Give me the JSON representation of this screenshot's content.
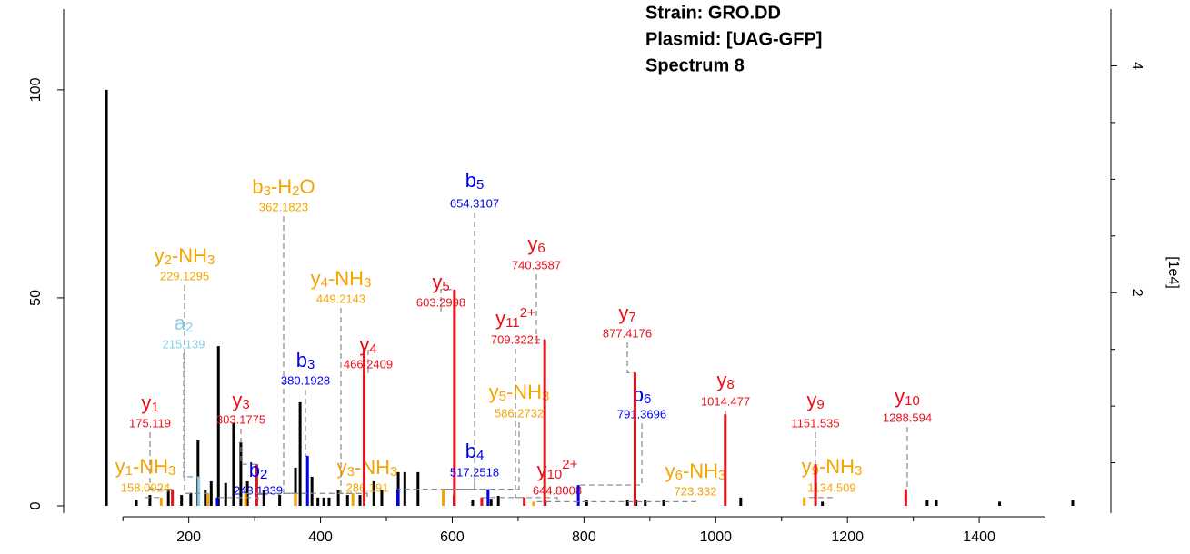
{
  "chart_data": {
    "type": "spectrum",
    "header": [
      "Strain: GRO.DD",
      "Plasmid: [UAG-GFP]",
      "Spectrum 8"
    ],
    "y2_label": "[1e4]",
    "xlim": [
      10,
      1600
    ],
    "xticks": [
      200,
      400,
      600,
      800,
      1000,
      1200,
      1400
    ],
    "xminor_ticks": [
      100,
      300,
      500,
      700,
      900,
      1100,
      1300,
      1500
    ],
    "ylim": [
      -1.75,
      119.4
    ],
    "yticks": [
      0,
      50,
      100
    ],
    "y2lim": [
      0.056,
      4.5
    ],
    "y2ticks": [
      2,
      4
    ],
    "y2minor_ticks": [
      0.5,
      1,
      1.5,
      2.5,
      3,
      3.5
    ],
    "peak_color": "#000000",
    "peaks": {
      "mz": [
        75,
        120.4,
        141,
        169,
        189,
        203,
        214,
        225,
        234,
        245,
        256,
        268,
        279,
        289,
        314,
        338,
        362,
        369,
        387,
        396,
        405,
        413,
        427,
        441,
        460,
        481,
        493,
        518,
        528,
        548,
        603,
        631,
        659,
        670,
        741,
        804,
        866,
        879,
        893,
        921,
        1038,
        1162,
        1321,
        1335,
        1431,
        1542
      ],
      "intensity": [
        100,
        1.5,
        2.6,
        3.7,
        2.6,
        3.1,
        15.7,
        3.7,
        5.9,
        38.4,
        5.5,
        19.9,
        15.3,
        5.9,
        3.7,
        2.6,
        9.2,
        24.9,
        7,
        2,
        2,
        2,
        3.7,
        2.6,
        2.6,
        5.9,
        3.7,
        8.1,
        8.1,
        8.1,
        2.6,
        1.5,
        1.7,
        2.4,
        1.5,
        1.5,
        1.5,
        1.5,
        1.5,
        1.5,
        2,
        1,
        1.3,
        1.5,
        1,
        1.3
      ]
    },
    "annotations": [
      {
        "label": [
          {
            "text": "y"
          },
          {
            "text": "1",
            "style": "sub"
          }
        ],
        "mz": 175.119,
        "intensity": 4,
        "color": "#e8111b"
      },
      {
        "label": [
          {
            "text": "y"
          },
          {
            "text": "1",
            "style": "sub"
          },
          {
            "text": "-NH"
          },
          {
            "text": "3",
            "style": "sub"
          }
        ],
        "mz": 158.0924,
        "intensity": 2,
        "color": "#f5a500"
      },
      {
        "label": [
          {
            "text": "a"
          },
          {
            "text": "2",
            "style": "sub"
          }
        ],
        "mz": 215.139,
        "intensity": 7,
        "color": "#87ceeb"
      },
      {
        "label": [
          {
            "text": "y"
          },
          {
            "text": "2",
            "style": "sub"
          },
          {
            "text": "-NH"
          },
          {
            "text": "3",
            "style": "sub"
          }
        ],
        "mz": 229.1295,
        "intensity": 3,
        "color": "#f5a500"
      },
      {
        "label": [
          {
            "text": "y"
          },
          {
            "text": "3",
            "style": "sub"
          }
        ],
        "mz": 303.1775,
        "intensity": 10,
        "color": "#e8111b"
      },
      {
        "label": [
          {
            "text": "b"
          },
          {
            "text": "2",
            "style": "sub"
          }
        ],
        "mz": 243.1339,
        "intensity": 2,
        "color": "#0000ee"
      },
      {
        "label": [
          {
            "text": "b"
          },
          {
            "text": "3",
            "style": "sub"
          },
          {
            "text": "-H"
          },
          {
            "text": "2",
            "style": "sub"
          },
          {
            "text": "O"
          }
        ],
        "mz": 362.1823,
        "intensity": 3,
        "color": "#f5a500"
      },
      {
        "label": [
          {
            "text": "b"
          },
          {
            "text": "3",
            "style": "sub"
          }
        ],
        "mz": 380.1928,
        "intensity": 12,
        "color": "#0000ee"
      },
      {
        "label": [
          {
            "text": "y"
          },
          {
            "text": "3",
            "style": "sub"
          },
          {
            "text": "-NH"
          },
          {
            "text": "3",
            "style": "sub"
          }
        ],
        "mz": 286.191,
        "intensity": 3,
        "color": "#f5a500"
      },
      {
        "label": [
          {
            "text": "y"
          },
          {
            "text": "4",
            "style": "sub"
          },
          {
            "text": "-NH"
          },
          {
            "text": "3",
            "style": "sub"
          }
        ],
        "mz": 449.2143,
        "intensity": 3,
        "color": "#f5a500"
      },
      {
        "label": [
          {
            "text": "y"
          },
          {
            "text": "4",
            "style": "sub"
          }
        ],
        "mz": 466.2409,
        "intensity": 38,
        "color": "#e8111b"
      },
      {
        "label": [
          {
            "text": "y"
          },
          {
            "text": "5",
            "style": "sub"
          }
        ],
        "mz": 603.2998,
        "intensity": 52,
        "color": "#e8111b"
      },
      {
        "label": [
          {
            "text": "b"
          },
          {
            "text": "4",
            "style": "sub"
          }
        ],
        "mz": 517.2518,
        "intensity": 4,
        "color": "#0000ee"
      },
      {
        "label": [
          {
            "text": "y"
          },
          {
            "text": "5",
            "style": "sub"
          },
          {
            "text": "-NH"
          },
          {
            "text": "3",
            "style": "sub"
          }
        ],
        "mz": 586.2732,
        "intensity": 4,
        "color": "#f5a500"
      },
      {
        "label": [
          {
            "text": "b"
          },
          {
            "text": "5",
            "style": "sub"
          }
        ],
        "mz": 654.3107,
        "intensity": 4,
        "color": "#0000ee"
      },
      {
        "label": [
          {
            "text": "y"
          },
          {
            "text": "11",
            "style": "sub"
          },
          {
            "text": "2+",
            "style": "sup"
          }
        ],
        "mz": 709.3221,
        "intensity": 2,
        "color": "#e8111b"
      },
      {
        "label": [
          {
            "text": "y"
          },
          {
            "text": "10",
            "style": "sub"
          },
          {
            "text": "2+",
            "style": "sup"
          }
        ],
        "mz": 644.8008,
        "intensity": 2,
        "color": "#e8111b"
      },
      {
        "label": [
          {
            "text": "y"
          },
          {
            "text": "6",
            "style": "sub"
          }
        ],
        "mz": 740.3587,
        "intensity": 40,
        "color": "#e8111b"
      },
      {
        "label": [
          {
            "text": "b"
          },
          {
            "text": "6",
            "style": "sub"
          }
        ],
        "mz": 791.3696,
        "intensity": 5,
        "color": "#0000ee"
      },
      {
        "label": [
          {
            "text": "y"
          },
          {
            "text": "6",
            "style": "sub"
          },
          {
            "text": "-NH"
          },
          {
            "text": "3",
            "style": "sub"
          }
        ],
        "mz": 723.332,
        "intensity": 1,
        "color": "#f5a500"
      },
      {
        "label": [
          {
            "text": "y"
          },
          {
            "text": "7",
            "style": "sub"
          }
        ],
        "mz": 877.4176,
        "intensity": 32,
        "color": "#e8111b"
      },
      {
        "label": [
          {
            "text": "y"
          },
          {
            "text": "8",
            "style": "sub"
          }
        ],
        "mz": 1014.477,
        "intensity": 22,
        "color": "#e8111b"
      },
      {
        "label": [
          {
            "text": "y"
          },
          {
            "text": "9",
            "style": "sub"
          },
          {
            "text": "-NH"
          },
          {
            "text": "3",
            "style": "sub"
          }
        ],
        "mz": 1134.509,
        "intensity": 2,
        "color": "#f5a500"
      },
      {
        "label": [
          {
            "text": "y"
          },
          {
            "text": "9",
            "style": "sub"
          }
        ],
        "mz": 1151.535,
        "intensity": 10,
        "color": "#e8111b"
      },
      {
        "label": [
          {
            "text": "y"
          },
          {
            "text": "10",
            "style": "sub"
          }
        ],
        "mz": 1288.594,
        "intensity": 4,
        "color": "#e8111b"
      }
    ]
  }
}
